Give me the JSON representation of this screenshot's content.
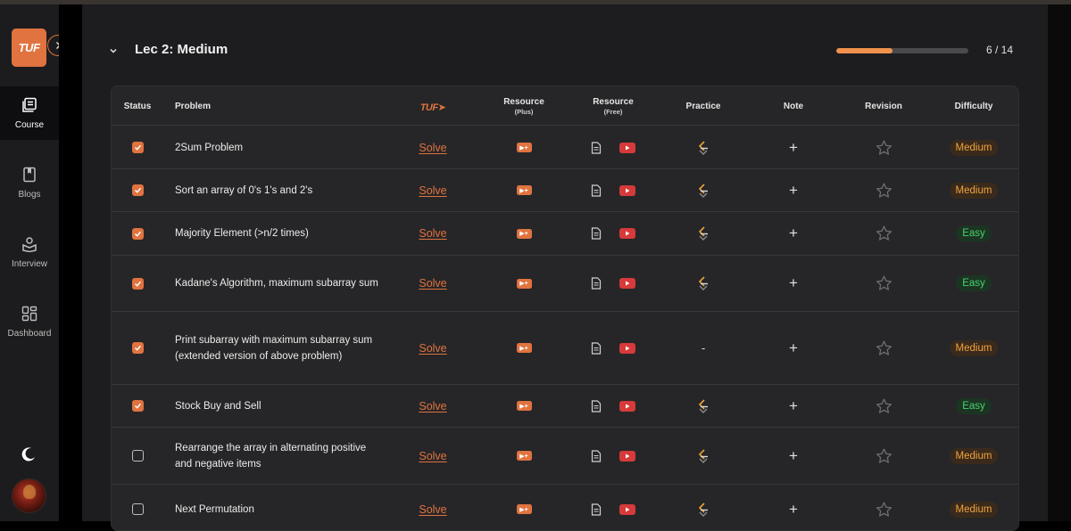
{
  "sidebar": {
    "logo_text": "TUF",
    "items": [
      {
        "label": "Course",
        "icon": "course-icon"
      },
      {
        "label": "Blogs",
        "icon": "blogs-icon"
      },
      {
        "label": "Interview",
        "icon": "interview-icon"
      },
      {
        "label": "Dashboard",
        "icon": "dashboard-icon"
      }
    ],
    "theme_icon": "moon-icon",
    "avatar_icon": "avatar"
  },
  "lecture": {
    "title": "Lec 2: Medium",
    "progress_text": "6 / 14",
    "progress_fraction": 0.4286
  },
  "table": {
    "headers": {
      "status": "Status",
      "problem": "Problem",
      "tuf": "TUF",
      "res_plus": "Resource",
      "res_plus_sub": "(Plus)",
      "res_free": "Resource",
      "res_free_sub": "(Free)",
      "practice": "Practice",
      "note": "Note",
      "revision": "Revision",
      "difficulty": "Difficulty"
    },
    "rows": [
      {
        "checked": true,
        "problem": "2Sum Problem",
        "solve": "Solve",
        "practice": "icon",
        "note": "+",
        "difficulty": "Medium"
      },
      {
        "checked": true,
        "problem": "Sort an array of 0's 1's and 2's",
        "solve": "Solve",
        "practice": "icon",
        "note": "+",
        "difficulty": "Medium"
      },
      {
        "checked": true,
        "problem": "Majority Element (>n/2 times)",
        "solve": "Solve",
        "practice": "icon",
        "note": "+",
        "difficulty": "Easy"
      },
      {
        "checked": true,
        "problem": "Kadane's Algorithm, maximum subarray sum",
        "solve": "Solve",
        "practice": "icon",
        "note": "+",
        "difficulty": "Easy"
      },
      {
        "checked": true,
        "problem": "Print subarray with maximum subarray sum (extended version of above problem)",
        "solve": "Solve",
        "practice": "-",
        "note": "+",
        "difficulty": "Medium"
      },
      {
        "checked": true,
        "problem": "Stock Buy and Sell",
        "solve": "Solve",
        "practice": "icon",
        "note": "+",
        "difficulty": "Easy"
      },
      {
        "checked": false,
        "problem": "Rearrange the array in alternating positive and negative items",
        "solve": "Solve",
        "practice": "icon",
        "note": "+",
        "difficulty": "Medium"
      },
      {
        "checked": false,
        "problem": "Next Permutation",
        "solve": "Solve",
        "practice": "icon",
        "note": "+",
        "difficulty": "Medium"
      }
    ]
  },
  "colors": {
    "accent": "#e0733f",
    "easy": "#48d16b",
    "medium": "#f0a23d"
  }
}
